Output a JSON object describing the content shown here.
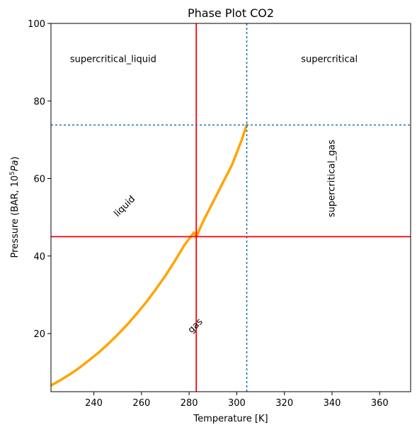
{
  "chart_data": {
    "type": "line",
    "title": "Phase Plot CO2",
    "xlabel": "Temperature [K]",
    "ylabel_main": "Pressure (BAR, 10",
    "ylabel_sup": "5",
    "ylabel_unit": "Pa",
    "ylabel_close": ")",
    "xlim": [
      222,
      373
    ],
    "ylim": [
      5,
      100
    ],
    "xticks": [
      240,
      260,
      280,
      300,
      320,
      340,
      360
    ],
    "yticks": [
      20,
      40,
      60,
      80,
      100
    ],
    "grid": false,
    "legend": "none",
    "vlines": [
      {
        "x": 283,
        "color": "#ff0000",
        "style": "solid"
      },
      {
        "x": 304.2,
        "color": "#1f77b4",
        "style": "dotted"
      }
    ],
    "hlines": [
      {
        "y": 45,
        "color": "#ff0000",
        "style": "solid"
      },
      {
        "y": 73.8,
        "color": "#1f77b4",
        "style": "dotted"
      }
    ],
    "series": [
      {
        "color": "#ffa500",
        "x": [
          222,
          226,
          230,
          234,
          238,
          242,
          246,
          250,
          254,
          258,
          262,
          266,
          270,
          274,
          278,
          282,
          283,
          286,
          290,
          294,
          298,
          302,
          304.2
        ],
        "y": [
          6.6,
          8.0,
          9.5,
          11.2,
          13.1,
          15.1,
          17.3,
          19.7,
          22.3,
          25.1,
          28.1,
          31.4,
          34.9,
          38.7,
          42.8,
          46.1,
          44.9,
          49.1,
          53.9,
          58.7,
          63.5,
          69.8,
          73.8
        ]
      }
    ],
    "annotations": [
      {
        "text": "supercritical_liquid",
        "x": 230,
        "y": 90,
        "rotation": 0
      },
      {
        "text": "supercritical",
        "x": 327,
        "y": 90,
        "rotation": 0
      },
      {
        "text": "supercritical_gas",
        "x": 341,
        "y": 50,
        "rotation": -90
      },
      {
        "text": "liquid",
        "x": 250,
        "y": 50,
        "rotation": -45
      },
      {
        "text": "gas",
        "x": 281,
        "y": 20,
        "rotation": -45
      }
    ]
  }
}
